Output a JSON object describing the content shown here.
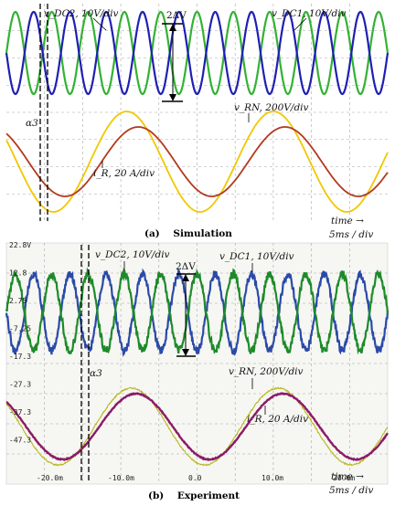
{
  "chart_data": [
    {
      "type": "line",
      "caption": "(a)    Simulation",
      "time_label": "time →",
      "time_scale": "5ms / div",
      "series": [
        {
          "label": "v_DC2, 10V/div",
          "color": "#1f1fb4",
          "cycles": 10.5
        },
        {
          "label": "v_DC1, 10V/div",
          "color": "#33b233",
          "cycles": 10.5
        },
        {
          "label": "v_RN, 200V/div",
          "color": "#f0c800",
          "cycles": 2.6
        },
        {
          "label": "i_R, 20 A/div",
          "color": "#b23a1e",
          "cycles": 2.6
        }
      ],
      "annotations": {
        "delta": "2ΔV",
        "alpha": "α3"
      }
    },
    {
      "type": "line",
      "caption": "(b)    Experiment",
      "time_label": "time →",
      "time_scale": "5ms / div",
      "y_tick_labels": [
        "22.8V",
        "12.8",
        "2.75",
        "-7.25",
        "-17.3",
        "-27.3",
        "-37.3",
        "-47.3"
      ],
      "x_tick_labels": [
        "-20.0m",
        "-10.0m",
        "0.0",
        "10.0m",
        "20.0m"
      ],
      "series": [
        {
          "label": "v_DC2, 10V/div",
          "color": "#2a4aa8",
          "cycles": 10.5
        },
        {
          "label": "v_DC1, 10V/div",
          "color": "#1d8a2a",
          "cycles": 10.5
        },
        {
          "label": "v_RN, 200V/div",
          "color": "#b8b820",
          "cycles": 2.6
        },
        {
          "label": "i_R, 20 A/div",
          "color": "#8a1c66",
          "cycles": 2.6
        }
      ],
      "annotations": {
        "delta": "2ΔV",
        "alpha": "α3"
      }
    }
  ]
}
